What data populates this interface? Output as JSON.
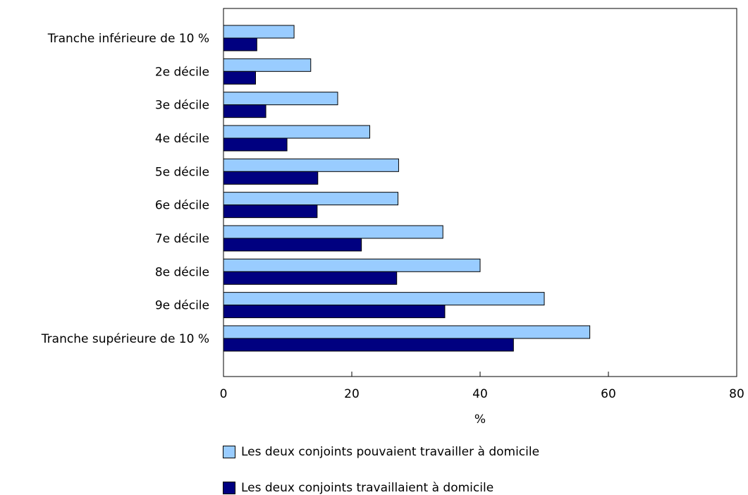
{
  "chart_data": {
    "type": "bar",
    "orientation": "horizontal",
    "categories": [
      "Tranche inférieure de 10 %",
      "2e décile",
      "3e décile",
      "4e décile",
      "5e décile",
      "6e décile",
      "7e décile",
      "8e décile",
      "9e décile",
      "Tranche supérieure de 10 %"
    ],
    "series": [
      {
        "name": "Les deux conjoints pouvaient travailler à domicile",
        "color": "#99ccff",
        "values": [
          11.0,
          13.6,
          17.8,
          22.8,
          27.3,
          27.2,
          34.2,
          40.0,
          50.0,
          57.1
        ]
      },
      {
        "name": "Les deux conjoints travaillaient à domicile",
        "color": "#000080",
        "values": [
          5.2,
          5.0,
          6.6,
          9.9,
          14.7,
          14.6,
          21.5,
          27.0,
          34.5,
          45.2
        ]
      }
    ],
    "xlabel": "%",
    "ylabel": "",
    "xlim": [
      0,
      80
    ],
    "xticks": [
      0,
      20,
      40,
      60,
      80
    ],
    "grid": false,
    "legend_position": "bottom"
  }
}
